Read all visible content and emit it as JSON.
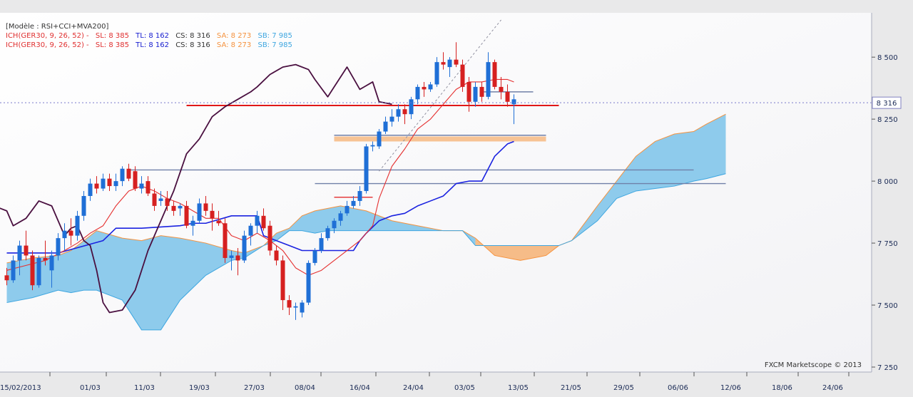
{
  "chart_data": {
    "type": "candlestick",
    "legend": {
      "model": "[Modèle : RSI+CCI+MVA200]",
      "rows": [
        {
          "ich": "ICH(GER30, 9, 26, 52) -",
          "sl": "SL: 8 385",
          "tl": "TL: 8 162",
          "cs": "CS: 8 316",
          "sa": "SA: 8 273",
          "sb": "SB: 7 985"
        },
        {
          "ich": "ICH(GER30, 9, 26, 52) -",
          "sl": "SL: 8 385",
          "tl": "TL: 8 162",
          "cs": "CS: 8 316",
          "sa": "SA: 8 273",
          "sb": "SB: 7 985"
        }
      ]
    },
    "colors": {
      "ich": "#e03030",
      "sl": "#e03030",
      "tl": "#1a20d0",
      "cs": "#333333",
      "sa": "#f5923e",
      "sb": "#3ea6e0",
      "bull": "#1f6fd6",
      "bear": "#d62020",
      "tenkan": "#e53030",
      "kijun": "#1a22e0",
      "chikou": "#4a1040",
      "cloud_bull": "#8ecbec",
      "cloud_bear": "#f6bc88"
    },
    "y_axis": {
      "min": 7250,
      "max": 8650,
      "ticks": [
        {
          "value": 7250,
          "label": "7 250"
        },
        {
          "value": 7500,
          "label": "7 500"
        },
        {
          "value": 7750,
          "label": "7 750"
        },
        {
          "value": 8000,
          "label": "8 000"
        },
        {
          "value": 8250,
          "label": "8 250"
        },
        {
          "value": 8500,
          "label": "8 500"
        }
      ]
    },
    "x_axis": {
      "ticks": [
        "15/02/2013",
        "01/03",
        "11/03",
        "19/03",
        "27/03",
        "08/04",
        "16/04",
        "24/04",
        "03/05",
        "13/05",
        "21/05",
        "29/05",
        "06/06",
        "12/06",
        "18/06",
        "24/06"
      ]
    },
    "current_price": {
      "value": 8316,
      "label": "8 316"
    },
    "candles": [
      {
        "o": 7620,
        "h": 7650,
        "l": 7580,
        "c": 7600
      },
      {
        "o": 7600,
        "h": 7700,
        "l": 7590,
        "c": 7680
      },
      {
        "o": 7680,
        "h": 7760,
        "l": 7620,
        "c": 7740
      },
      {
        "o": 7740,
        "h": 7800,
        "l": 7680,
        "c": 7700
      },
      {
        "o": 7700,
        "h": 7720,
        "l": 7560,
        "c": 7580
      },
      {
        "o": 7580,
        "h": 7700,
        "l": 7570,
        "c": 7690
      },
      {
        "o": 7690,
        "h": 7760,
        "l": 7660,
        "c": 7680
      },
      {
        "o": 7640,
        "h": 7720,
        "l": 7570,
        "c": 7700
      },
      {
        "o": 7700,
        "h": 7790,
        "l": 7680,
        "c": 7770
      },
      {
        "o": 7770,
        "h": 7830,
        "l": 7720,
        "c": 7800
      },
      {
        "o": 7800,
        "h": 7850,
        "l": 7740,
        "c": 7780
      },
      {
        "o": 7780,
        "h": 7880,
        "l": 7760,
        "c": 7860
      },
      {
        "o": 7860,
        "h": 7960,
        "l": 7840,
        "c": 7940
      },
      {
        "o": 7940,
        "h": 8010,
        "l": 7920,
        "c": 7990
      },
      {
        "o": 7990,
        "h": 8020,
        "l": 7950,
        "c": 7970
      },
      {
        "o": 7970,
        "h": 8030,
        "l": 7960,
        "c": 8010
      },
      {
        "o": 8010,
        "h": 8030,
        "l": 7960,
        "c": 7980
      },
      {
        "o": 7980,
        "h": 8030,
        "l": 7960,
        "c": 8000
      },
      {
        "o": 8000,
        "h": 8060,
        "l": 7980,
        "c": 8050
      },
      {
        "o": 8050,
        "h": 8070,
        "l": 8000,
        "c": 8010
      },
      {
        "o": 8040,
        "h": 8060,
        "l": 7960,
        "c": 7970
      },
      {
        "o": 7970,
        "h": 8020,
        "l": 7950,
        "c": 7990
      },
      {
        "o": 8000,
        "h": 8020,
        "l": 7940,
        "c": 7950
      },
      {
        "o": 7950,
        "h": 7970,
        "l": 7880,
        "c": 7900
      },
      {
        "o": 7920,
        "h": 7960,
        "l": 7900,
        "c": 7930
      },
      {
        "o": 7930,
        "h": 7960,
        "l": 7880,
        "c": 7900
      },
      {
        "o": 7900,
        "h": 7920,
        "l": 7860,
        "c": 7880
      },
      {
        "o": 7890,
        "h": 7910,
        "l": 7860,
        "c": 7900
      },
      {
        "o": 7900,
        "h": 7920,
        "l": 7810,
        "c": 7820
      },
      {
        "o": 7820,
        "h": 7860,
        "l": 7780,
        "c": 7840
      },
      {
        "o": 7840,
        "h": 7930,
        "l": 7830,
        "c": 7910
      },
      {
        "o": 7910,
        "h": 7940,
        "l": 7860,
        "c": 7880
      },
      {
        "o": 7880,
        "h": 7910,
        "l": 7800,
        "c": 7850
      },
      {
        "o": 7840,
        "h": 7880,
        "l": 7820,
        "c": 7830
      },
      {
        "o": 7830,
        "h": 7850,
        "l": 7670,
        "c": 7690
      },
      {
        "o": 7690,
        "h": 7720,
        "l": 7640,
        "c": 7700
      },
      {
        "o": 7700,
        "h": 7730,
        "l": 7620,
        "c": 7680
      },
      {
        "o": 7680,
        "h": 7800,
        "l": 7670,
        "c": 7780
      },
      {
        "o": 7780,
        "h": 7830,
        "l": 7740,
        "c": 7820
      },
      {
        "o": 7820,
        "h": 7880,
        "l": 7790,
        "c": 7860
      },
      {
        "o": 7860,
        "h": 7890,
        "l": 7800,
        "c": 7810
      },
      {
        "o": 7820,
        "h": 7840,
        "l": 7700,
        "c": 7720
      },
      {
        "o": 7720,
        "h": 7740,
        "l": 7660,
        "c": 7680
      },
      {
        "o": 7680,
        "h": 7700,
        "l": 7480,
        "c": 7520
      },
      {
        "o": 7520,
        "h": 7540,
        "l": 7460,
        "c": 7490
      },
      {
        "o": 7490,
        "h": 7510,
        "l": 7440,
        "c": 7495
      },
      {
        "o": 7470,
        "h": 7520,
        "l": 7450,
        "c": 7510
      },
      {
        "o": 7510,
        "h": 7680,
        "l": 7500,
        "c": 7670
      },
      {
        "o": 7670,
        "h": 7730,
        "l": 7660,
        "c": 7720
      },
      {
        "o": 7720,
        "h": 7790,
        "l": 7710,
        "c": 7770
      },
      {
        "o": 7770,
        "h": 7820,
        "l": 7760,
        "c": 7810
      },
      {
        "o": 7810,
        "h": 7850,
        "l": 7790,
        "c": 7840
      },
      {
        "o": 7840,
        "h": 7880,
        "l": 7820,
        "c": 7870
      },
      {
        "o": 7870,
        "h": 7920,
        "l": 7860,
        "c": 7900
      },
      {
        "o": 7900,
        "h": 7940,
        "l": 7890,
        "c": 7920
      },
      {
        "o": 7920,
        "h": 7980,
        "l": 7900,
        "c": 7960
      },
      {
        "o": 7960,
        "h": 8150,
        "l": 7950,
        "c": 8140
      },
      {
        "o": 8140,
        "h": 8160,
        "l": 8120,
        "c": 8145
      },
      {
        "o": 8140,
        "h": 8210,
        "l": 8130,
        "c": 8200
      },
      {
        "o": 8200,
        "h": 8260,
        "l": 8190,
        "c": 8240
      },
      {
        "o": 8240,
        "h": 8290,
        "l": 8220,
        "c": 8260
      },
      {
        "o": 8260,
        "h": 8310,
        "l": 8240,
        "c": 8290
      },
      {
        "o": 8290,
        "h": 8310,
        "l": 8230,
        "c": 8270
      },
      {
        "o": 8270,
        "h": 8340,
        "l": 8250,
        "c": 8330
      },
      {
        "o": 8330,
        "h": 8390,
        "l": 8310,
        "c": 8380
      },
      {
        "o": 8380,
        "h": 8400,
        "l": 8340,
        "c": 8370
      },
      {
        "o": 8370,
        "h": 8400,
        "l": 8360,
        "c": 8390
      },
      {
        "o": 8390,
        "h": 8500,
        "l": 8380,
        "c": 8480
      },
      {
        "o": 8480,
        "h": 8520,
        "l": 8450,
        "c": 8470
      },
      {
        "o": 8460,
        "h": 8500,
        "l": 8420,
        "c": 8490
      },
      {
        "o": 8490,
        "h": 8560,
        "l": 8460,
        "c": 8470
      },
      {
        "o": 8470,
        "h": 8490,
        "l": 8360,
        "c": 8380
      },
      {
        "o": 8400,
        "h": 8420,
        "l": 8280,
        "c": 8320
      },
      {
        "o": 8320,
        "h": 8400,
        "l": 8300,
        "c": 8380
      },
      {
        "o": 8380,
        "h": 8400,
        "l": 8320,
        "c": 8340
      },
      {
        "o": 8340,
        "h": 8520,
        "l": 8330,
        "c": 8480
      },
      {
        "o": 8480,
        "h": 8490,
        "l": 8370,
        "c": 8380
      },
      {
        "o": 8380,
        "h": 8420,
        "l": 8330,
        "c": 8360
      },
      {
        "o": 8360,
        "h": 8390,
        "l": 8300,
        "c": 8320
      },
      {
        "o": 8310,
        "h": 8350,
        "l": 8230,
        "c": 8330
      }
    ],
    "tenkan": [
      [
        0,
        7640
      ],
      [
        3,
        7660
      ],
      [
        6,
        7680
      ],
      [
        9,
        7720
      ],
      [
        11,
        7750
      ],
      [
        13,
        7790
      ],
      [
        15,
        7820
      ],
      [
        17,
        7900
      ],
      [
        19,
        7960
      ],
      [
        21,
        7980
      ],
      [
        23,
        7960
      ],
      [
        25,
        7930
      ],
      [
        27,
        7910
      ],
      [
        29,
        7880
      ],
      [
        31,
        7850
      ],
      [
        33,
        7850
      ],
      [
        35,
        7780
      ],
      [
        37,
        7760
      ],
      [
        39,
        7790
      ],
      [
        41,
        7760
      ],
      [
        43,
        7720
      ],
      [
        45,
        7650
      ],
      [
        47,
        7620
      ],
      [
        49,
        7640
      ],
      [
        51,
        7680
      ],
      [
        53,
        7720
      ],
      [
        55,
        7760
      ],
      [
        56,
        7790
      ],
      [
        57,
        7820
      ],
      [
        58,
        7930
      ],
      [
        60,
        8060
      ],
      [
        62,
        8130
      ],
      [
        64,
        8210
      ],
      [
        66,
        8250
      ],
      [
        68,
        8310
      ],
      [
        70,
        8370
      ],
      [
        72,
        8400
      ],
      [
        74,
        8400
      ],
      [
        76,
        8410
      ],
      [
        78,
        8410
      ],
      [
        79,
        8400
      ]
    ],
    "kijun": [
      [
        0,
        7710
      ],
      [
        8,
        7710
      ],
      [
        15,
        7760
      ],
      [
        17,
        7810
      ],
      [
        21,
        7810
      ],
      [
        27,
        7820
      ],
      [
        29,
        7830
      ],
      [
        31,
        7830
      ],
      [
        35,
        7860
      ],
      [
        37,
        7860
      ],
      [
        39,
        7860
      ],
      [
        40,
        7780
      ],
      [
        42,
        7760
      ],
      [
        44,
        7740
      ],
      [
        46,
        7720
      ],
      [
        48,
        7720
      ],
      [
        52,
        7720
      ],
      [
        54,
        7720
      ],
      [
        55,
        7760
      ],
      [
        56,
        7790
      ],
      [
        58,
        7840
      ],
      [
        60,
        7860
      ],
      [
        62,
        7870
      ],
      [
        64,
        7900
      ],
      [
        66,
        7920
      ],
      [
        68,
        7940
      ],
      [
        70,
        7990
      ],
      [
        72,
        8000
      ],
      [
        74,
        8000
      ],
      [
        75,
        8050
      ],
      [
        76,
        8100
      ],
      [
        78,
        8150
      ],
      [
        79,
        8160
      ]
    ],
    "chikou": [
      [
        -2,
        7900
      ],
      [
        0,
        7880
      ],
      [
        1,
        7820
      ],
      [
        3,
        7850
      ],
      [
        5,
        7920
      ],
      [
        7,
        7900
      ],
      [
        9,
        7780
      ],
      [
        10,
        7810
      ],
      [
        11,
        7820
      ],
      [
        12,
        7760
      ],
      [
        13,
        7740
      ],
      [
        14,
        7640
      ],
      [
        15,
        7510
      ],
      [
        16,
        7470
      ],
      [
        18,
        7480
      ],
      [
        20,
        7560
      ],
      [
        22,
        7720
      ],
      [
        24,
        7840
      ],
      [
        26,
        7960
      ],
      [
        28,
        8110
      ],
      [
        30,
        8170
      ],
      [
        32,
        8260
      ],
      [
        34,
        8300
      ],
      [
        36,
        8330
      ],
      [
        38,
        8360
      ],
      [
        39,
        8380
      ],
      [
        41,
        8430
      ],
      [
        43,
        8460
      ],
      [
        45,
        8470
      ],
      [
        47,
        8450
      ],
      [
        48,
        8410
      ],
      [
        50,
        8340
      ],
      [
        51,
        8380
      ],
      [
        53,
        8460
      ],
      [
        55,
        8370
      ],
      [
        57,
        8400
      ],
      [
        58,
        8320
      ],
      [
        60,
        8310
      ]
    ],
    "cloud": [
      [
        0,
        7670,
        7510
      ],
      [
        4,
        7690,
        7530
      ],
      [
        8,
        7700,
        7560
      ],
      [
        10,
        7720,
        7550
      ],
      [
        12,
        7760,
        7560
      ],
      [
        14,
        7800,
        7560
      ],
      [
        18,
        7770,
        7520
      ],
      [
        21,
        7760,
        7400
      ],
      [
        24,
        7780,
        7400
      ],
      [
        27,
        7770,
        7520
      ],
      [
        31,
        7750,
        7620
      ],
      [
        35,
        7720,
        7680
      ],
      [
        37,
        7710,
        7690
      ],
      [
        40,
        7740,
        7740
      ],
      [
        42,
        7790,
        7760
      ],
      [
        44,
        7810,
        7800
      ],
      [
        46,
        7860,
        7800
      ],
      [
        48,
        7880,
        7790
      ],
      [
        50,
        7890,
        7800
      ],
      [
        52,
        7900,
        7800
      ],
      [
        56,
        7880,
        7800
      ],
      [
        60,
        7840,
        7800
      ],
      [
        64,
        7820,
        7800
      ],
      [
        68,
        7800,
        7800
      ],
      [
        71,
        7800,
        7800
      ],
      [
        73,
        7770,
        7740
      ],
      [
        76,
        7700,
        7740
      ],
      [
        80,
        7680,
        7740
      ],
      [
        84,
        7700,
        7740
      ],
      [
        86,
        7740,
        7740
      ],
      [
        88,
        7760,
        7760
      ],
      [
        92,
        7900,
        7840
      ],
      [
        95,
        8000,
        7930
      ],
      [
        98,
        8100,
        7960
      ],
      [
        101,
        8160,
        7970
      ],
      [
        104,
        8190,
        7980
      ],
      [
        107,
        8200,
        8000
      ],
      [
        109,
        8230,
        8010
      ],
      [
        112,
        8270,
        8030
      ]
    ],
    "levels": [
      {
        "type": "resistance_red",
        "y": 8305,
        "from": 28,
        "to": 86
      },
      {
        "type": "zone_orange",
        "y1": 8160,
        "y2": 8180,
        "from": 51,
        "to": 84
      },
      {
        "type": "line_slate",
        "y": 8185,
        "from": 51,
        "to": 84
      },
      {
        "type": "line_slate",
        "y": 8045,
        "from": 19,
        "to": 107
      },
      {
        "type": "line_slate",
        "y": 7990,
        "from": 48,
        "to": 112
      },
      {
        "type": "line_red_short",
        "y": 7935,
        "from": 51,
        "to": 57
      },
      {
        "type": "line_slate_short",
        "y": 8360,
        "from": 74,
        "to": 82
      }
    ],
    "trend": {
      "from": [
        58,
        8040
      ],
      "to": [
        77,
        8650
      ]
    },
    "annotation": "FXCM Marketscope © 2013"
  }
}
